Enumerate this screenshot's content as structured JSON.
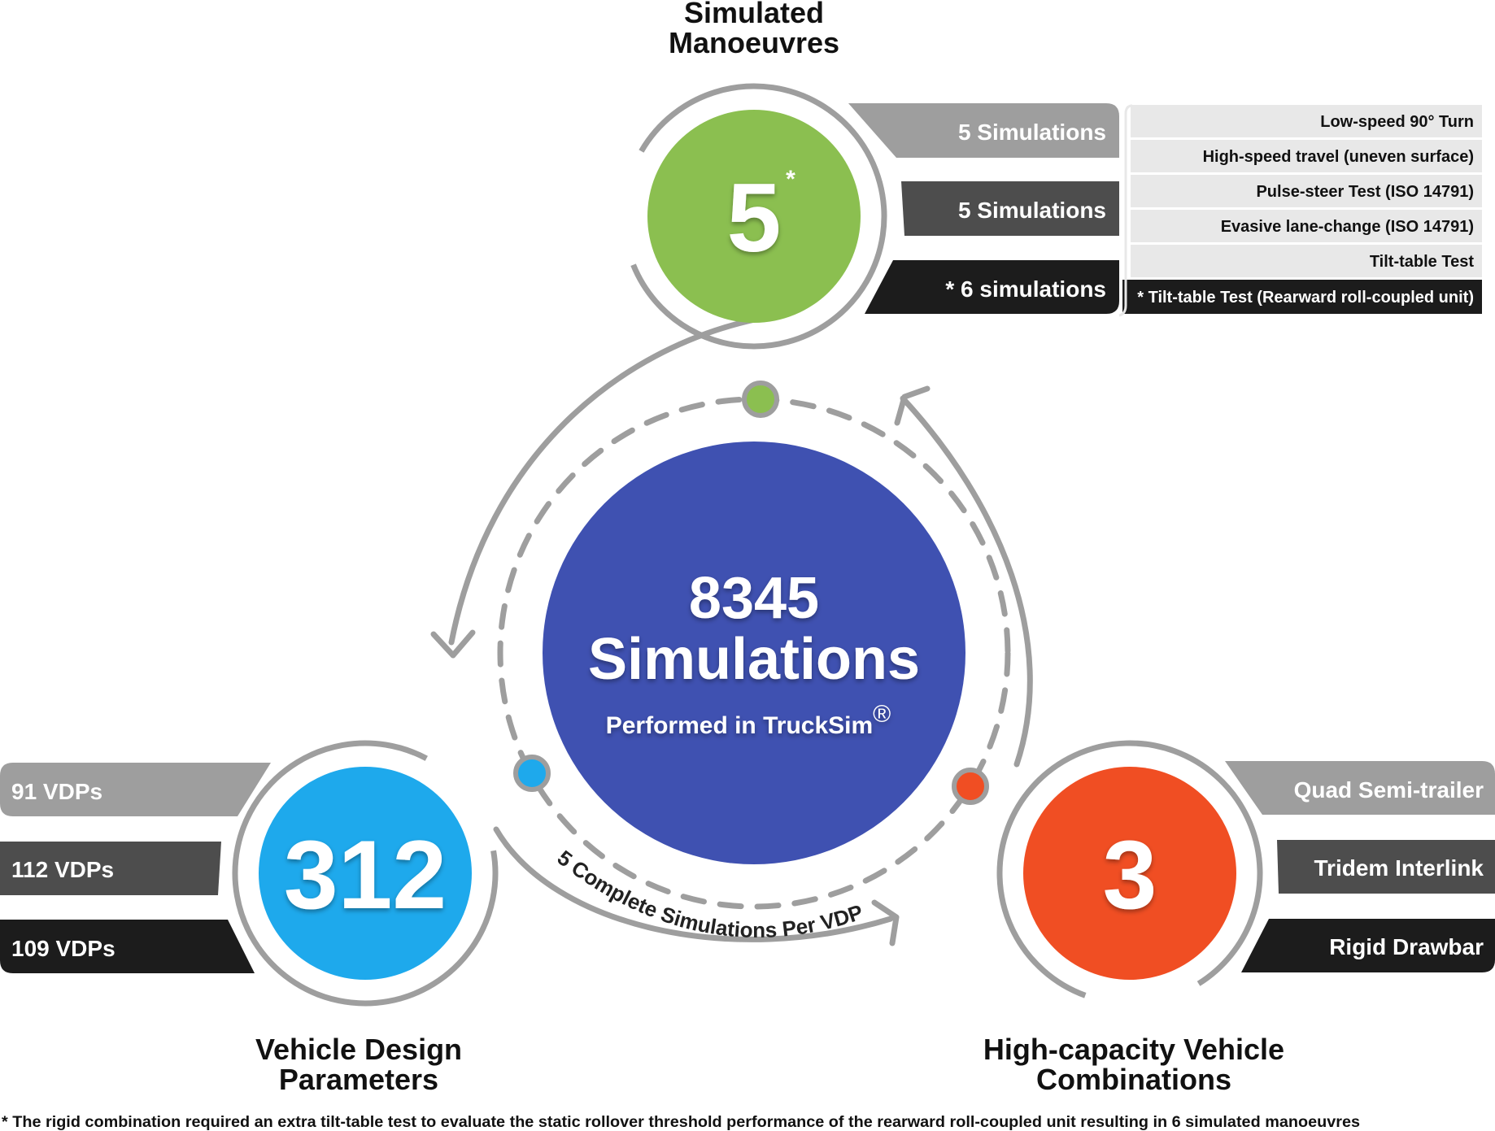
{
  "manoeuvres": {
    "title_line1": "Simulated",
    "title_line2": "Manoeuvres",
    "number": "5",
    "asterisk": "*",
    "bars": [
      "5 Simulations",
      "5 Simulations",
      "* 6 simulations"
    ],
    "list": [
      "Low-speed 90° Turn",
      "High-speed travel (uneven surface)",
      "Pulse-steer Test (ISO 14791)",
      "Evasive lane-change (ISO 14791)",
      "Tilt-table Test",
      "* Tilt-table Test (Rearward roll-coupled unit)"
    ]
  },
  "center": {
    "number": "8345",
    "label": "Simulations",
    "subtitle": "Performed in TruckSim",
    "registered": "®"
  },
  "vdp": {
    "number": "312",
    "bars": [
      "91 VDPs",
      "112 VDPs",
      "109 VDPs"
    ],
    "title_line1": "Vehicle Design",
    "title_line2": "Parameters"
  },
  "hcv": {
    "number": "3",
    "bars": [
      "Quad Semi-trailer",
      "Tridem Interlink",
      "Rigid Drawbar"
    ],
    "title_line1": "High-capacity Vehicle",
    "title_line2": "Combinations"
  },
  "arc_label": "5 Complete Simulations Per VDP",
  "footnote": "* The rigid combination required an extra tilt-table test to evaluate the static rollover threshold performance of the rearward roll-coupled unit resulting in 6 simulated manoeuvres",
  "colors": {
    "green": "#8bbf50",
    "blue": "#1ea9ec",
    "red": "#f04e23",
    "navy": "#3f51b1",
    "ring": "#9e9e9e",
    "bar_light": "#9e9e9e",
    "bar_mid": "#4d4d4d",
    "bar_dark": "#1c1c1c",
    "list_bg": "#e8e8e8"
  }
}
